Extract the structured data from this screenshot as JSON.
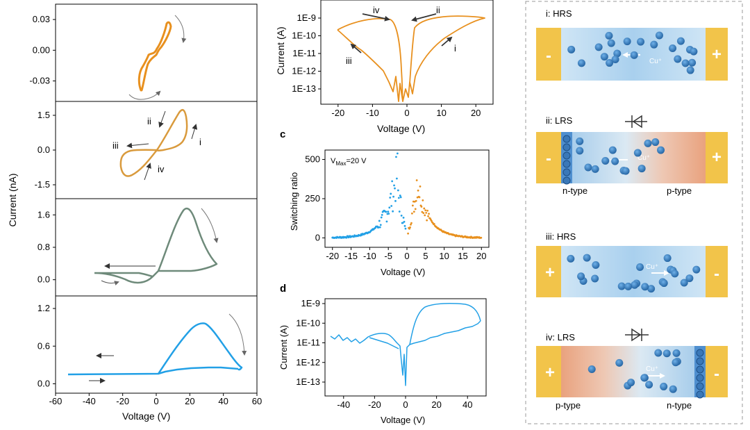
{
  "figure": {
    "panel_letters": {
      "c": "c",
      "d": "d"
    },
    "colors": {
      "orange": "#E8901E",
      "gold": "#D99A3C",
      "green": "#6E8A7A",
      "blue": "#22A0E6",
      "bar_gold": "#F2C44A",
      "electrolyte": "#BFDDF2",
      "ion": "#2E7BC4",
      "ptype": "#EBA07C"
    }
  },
  "chart_data": [
    {
      "id": "left-stack",
      "type": "line",
      "xlabel": "Voltage (V)",
      "ylabel": "Current (nA)",
      "xlim": [
        -60,
        60
      ],
      "x_ticks": [
        "-60",
        "-40",
        "-20",
        "0",
        "20",
        "40",
        "60"
      ],
      "subplots": [
        {
          "ylim": [
            -0.05,
            0.045
          ],
          "y_ticks": [
            "0.03",
            "0.00",
            "-0.03"
          ],
          "y_tick_values": [
            0.03,
            0,
            -0.03
          ],
          "color": "#E8901E"
        },
        {
          "ylim": [
            -2.1,
            2.1
          ],
          "y_ticks": [
            "1.5",
            "0.0",
            "-1.5"
          ],
          "y_tick_values": [
            1.5,
            0,
            -1.5
          ],
          "color": "#D99A3C",
          "annotations": [
            "ii",
            "iii",
            "i",
            "iv"
          ]
        },
        {
          "ylim": [
            -0.4,
            2.0
          ],
          "y_ticks": [
            "1.6",
            "0.8",
            "0.0"
          ],
          "y_tick_values": [
            1.6,
            0.8,
            0
          ],
          "color": "#6E8A7A"
        },
        {
          "ylim": [
            -0.15,
            1.4
          ],
          "y_ticks": [
            "1.2",
            "0.6",
            "0.0"
          ],
          "y_tick_values": [
            1.2,
            0.6,
            0
          ],
          "color": "#22A0E6"
        }
      ]
    },
    {
      "id": "top-middle",
      "type": "line",
      "xlabel": "Voltage (V)",
      "ylabel": "Current (A)",
      "yscale": "log",
      "xlim": [
        -25,
        25
      ],
      "x_ticks": [
        "-20",
        "-10",
        "0",
        "10",
        "20"
      ],
      "y_ticks": [
        "1E-9",
        "1E-10",
        "1E-11",
        "1E-12",
        "1E-13"
      ],
      "annotations": [
        "iv",
        "ii",
        "iii",
        "i"
      ],
      "color": "#E8901E"
    },
    {
      "id": "panel-c",
      "type": "scatter",
      "xlabel": "Voltage (V)",
      "ylabel": "Switching ratio",
      "xlim": [
        -22,
        22
      ],
      "ylim": [
        -60,
        560
      ],
      "x_ticks": [
        "-20",
        "-15",
        "-10",
        "-5",
        "0",
        "5",
        "10",
        "15",
        "20"
      ],
      "y_ticks": [
        "500",
        "250",
        "0"
      ],
      "legend_text": "V",
      "legend_sub": "Max",
      "legend_rest": "=20 V",
      "series": [
        {
          "name": "negative",
          "color": "#22A0E6"
        },
        {
          "name": "positive",
          "color": "#E8901E"
        }
      ]
    },
    {
      "id": "panel-d",
      "type": "line",
      "xlabel": "Voltage (V)",
      "ylabel": "Current (A)",
      "yscale": "log",
      "xlim": [
        -52,
        52
      ],
      "x_ticks": [
        "-40",
        "-20",
        "0",
        "20",
        "40"
      ],
      "y_ticks": [
        "1E-9",
        "1E-10",
        "1E-11",
        "1E-12",
        "1E-13"
      ],
      "color": "#22A0E6"
    }
  ],
  "schematic": {
    "panels": [
      {
        "title": "i: HRS",
        "left_sign": "-",
        "right_sign": "+",
        "ion_label": "Cu⁺",
        "left_type": "",
        "right_type": ""
      },
      {
        "title": "ii: LRS",
        "left_sign": "-",
        "right_sign": "+",
        "ion_label": "Cu⁺",
        "left_type": "n-type",
        "right_type": "p-type"
      },
      {
        "title": "iii: HRS",
        "left_sign": "+",
        "right_sign": "-",
        "ion_label": "Cu⁺",
        "left_type": "",
        "right_type": ""
      },
      {
        "title": "iv: LRS",
        "left_sign": "+",
        "right_sign": "-",
        "ion_label": "Cu⁺",
        "left_type": "p-type",
        "right_type": "n-type"
      }
    ]
  }
}
